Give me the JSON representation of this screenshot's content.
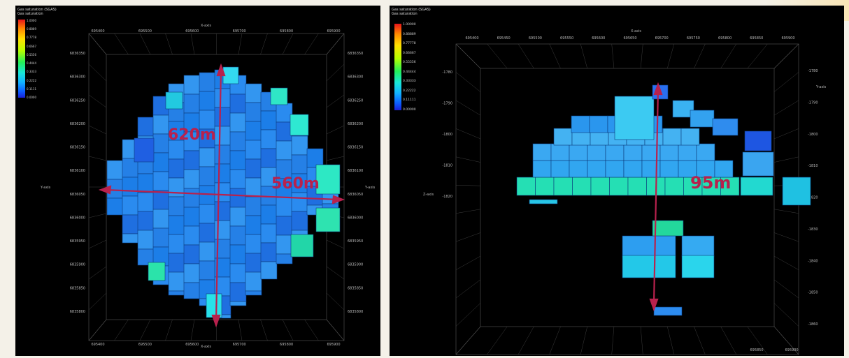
{
  "left": {
    "title": "Gas saturation (SGAS)",
    "subtitle": "Gas saturation",
    "colorbar_labels": [
      "1.0000",
      "0.8889",
      "0.7778",
      "0.6667",
      "0.5556",
      "0.4444",
      "0.3333",
      "0.2222",
      "0.1111",
      "0.0000"
    ],
    "x_axis_label": "X-axis",
    "y_axis_label": "Y-axis",
    "top_ticks": [
      "695400",
      "695500",
      "695600",
      "695700",
      "695800",
      "695900"
    ],
    "bottom_ticks": [
      "695400",
      "695500",
      "695600",
      "695700",
      "695800",
      "695900"
    ],
    "left_ticks": [
      "6836350",
      "6836300",
      "6836250",
      "6836200",
      "6836150",
      "6836100",
      "6836050",
      "6836000",
      "6835950",
      "6835900",
      "6835850",
      "6835800"
    ],
    "right_ticks": [
      "6836350",
      "6836300",
      "6836250",
      "6836200",
      "6836150",
      "6836100",
      "6836050",
      "6836000",
      "6835950",
      "6835900",
      "6835850",
      "6835800"
    ],
    "vertical_dimension": "620m",
    "horizontal_dimension": "560m"
  },
  "right": {
    "title": "Gas saturation (SGAS)",
    "subtitle": "Gas saturation",
    "colorbar_labels": [
      "1.00000",
      "0.88889",
      "0.77778",
      "0.66667",
      "0.55556",
      "0.44444",
      "0.33333",
      "0.22222",
      "0.11111",
      "0.00000"
    ],
    "x_axis_label": "X-axis",
    "z_axis_label": "Z-axis",
    "y_axis_label": "Y-axis",
    "top_ticks": [
      "695400",
      "695450",
      "695500",
      "695550",
      "695600",
      "695650",
      "695700",
      "695750",
      "695800",
      "695850",
      "695900"
    ],
    "bottom_ticks": [
      "695850",
      "695900"
    ],
    "left_ticks": [
      "-1780",
      "-1790",
      "-1800",
      "-1810",
      "-1820"
    ],
    "right_ticks": [
      "-1780",
      "-1790",
      "-1800",
      "-1810",
      "-1820",
      "-1830",
      "-1840",
      "-1850",
      "-1860"
    ],
    "vertical_dimension": "95m"
  },
  "colors": {
    "dimension": "#b8214d",
    "background": "#000000",
    "grid": "#5a5a5a"
  }
}
